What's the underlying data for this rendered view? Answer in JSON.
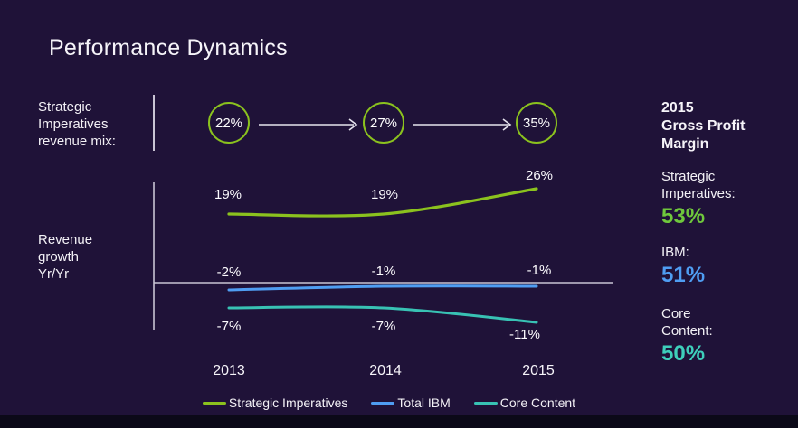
{
  "slide": {
    "title": "Performance Dynamics",
    "revenue_mix_label": "Strategic\nImperatives\nrevenue mix:",
    "revenue_growth_label": "Revenue\ngrowth\nYr/Yr"
  },
  "revenue_mix": {
    "circle_color": "#8bc21e",
    "values": [
      "22%",
      "27%",
      "35%"
    ]
  },
  "chart_data": {
    "type": "line",
    "x": [
      2013,
      2014,
      2015
    ],
    "x_labels": [
      "2013",
      "2014",
      "2015"
    ],
    "ylabel": "Revenue growth Yr/Yr",
    "baseline": 0,
    "grid": false,
    "legend_position": "bottom",
    "series": [
      {
        "name": "Strategic Imperatives",
        "color": "#8bc21e",
        "values": [
          19,
          19,
          26
        ],
        "point_labels": [
          "19%",
          "19%",
          "26%"
        ]
      },
      {
        "name": "Total IBM",
        "color": "#4f9df2",
        "values": [
          -2,
          -1,
          -1
        ],
        "point_labels": [
          "-2%",
          "-1%",
          "-1%"
        ]
      },
      {
        "name": "Core Content",
        "color": "#38c2b4",
        "values": [
          -7,
          -7,
          -11
        ],
        "point_labels": [
          "-7%",
          "-7%",
          "-11%"
        ]
      }
    ]
  },
  "side_panel": {
    "heading": "2015\nGross Profit\nMargin",
    "stats": [
      {
        "label": "Strategic\nImperatives:",
        "value": "53%",
        "color": "#6fc83c"
      },
      {
        "label": "IBM:",
        "value": "51%",
        "color": "#4f9df2"
      },
      {
        "label": "Core\nContent:",
        "value": "50%",
        "color": "#3ecfbb"
      }
    ]
  }
}
